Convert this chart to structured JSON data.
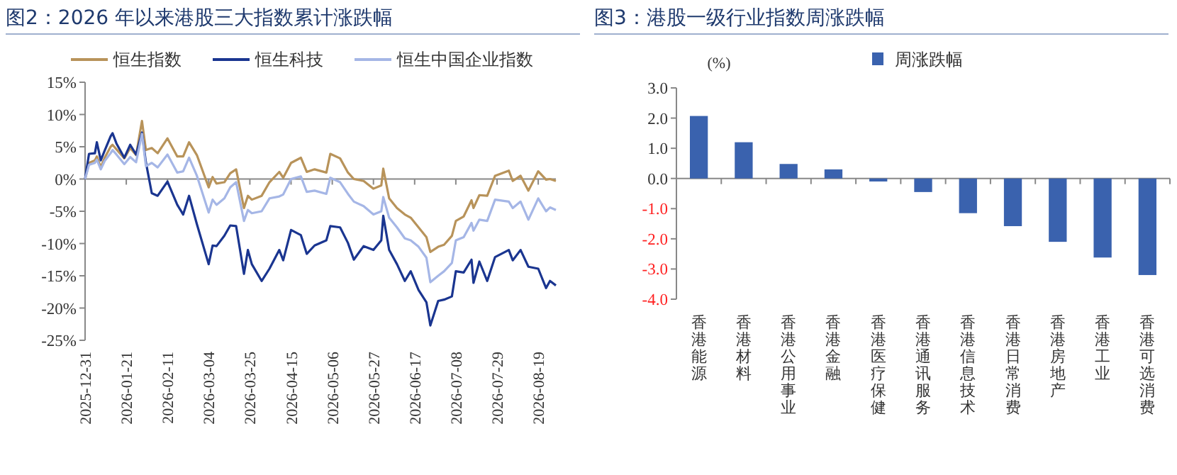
{
  "chart_data": [
    {
      "type": "line",
      "title": "图2：2026 年以来港股三大指数累计涨跌幅",
      "legend": "top",
      "x": [
        "2025-12-31",
        "2026-01-02",
        "2026-01-05",
        "2026-01-06",
        "2026-01-08",
        "2026-01-10",
        "2026-01-13",
        "2026-01-14",
        "2026-01-16",
        "2026-01-20",
        "2026-01-23",
        "2026-01-26",
        "2026-01-29",
        "2026-01-31",
        "2026-02-03",
        "2026-02-06",
        "2026-02-11",
        "2026-02-16",
        "2026-02-19",
        "2026-02-22",
        "2026-02-26",
        "2026-03-04",
        "2026-03-06",
        "2026-03-08",
        "2026-03-12",
        "2026-03-15",
        "2026-03-18",
        "2026-03-22",
        "2026-03-24",
        "2026-03-26",
        "2026-03-31",
        "2026-04-04",
        "2026-04-09",
        "2026-04-11",
        "2026-04-15",
        "2026-04-20",
        "2026-04-23",
        "2026-04-27",
        "2026-05-03",
        "2026-05-05",
        "2026-05-10",
        "2026-05-14",
        "2026-05-17",
        "2026-05-22",
        "2026-05-27",
        "2026-05-31",
        "2026-06-01",
        "2026-06-04",
        "2026-06-08",
        "2026-06-12",
        "2026-06-15",
        "2026-06-19",
        "2026-06-23",
        "2026-06-25",
        "2026-06-29",
        "2026-07-02",
        "2026-07-06",
        "2026-07-08",
        "2026-07-12",
        "2026-07-16",
        "2026-07-17",
        "2026-07-20",
        "2026-07-24",
        "2026-07-28",
        "2026-08-04",
        "2026-08-06",
        "2026-08-10",
        "2026-08-14",
        "2026-08-19",
        "2026-08-23",
        "2026-08-25",
        "2026-08-28"
      ],
      "series": [
        {
          "name": "恒生指数",
          "color": "#b8935a",
          "values": [
            0,
            2.5,
            2.9,
            3.5,
            1.8,
            3.3,
            5.0,
            5.3,
            4.6,
            3.2,
            4.8,
            3.7,
            9.0,
            4.5,
            4.8,
            4.0,
            6.3,
            3.5,
            3.5,
            5.7,
            3.7,
            -1.3,
            0.3,
            -0.7,
            -0.5,
            0.9,
            1.5,
            -4.5,
            -2.6,
            -3.2,
            -2.6,
            -0.5,
            1.1,
            0.2,
            2.5,
            3.3,
            1.1,
            1.5,
            1.0,
            3.9,
            3.2,
            1.0,
            0.0,
            -0.3,
            -1.5,
            -1.0,
            1.6,
            -3.0,
            -4.5,
            -5.5,
            -6.0,
            -7.5,
            -9.0,
            -11.3,
            -10.5,
            -10.2,
            -8.8,
            -6.5,
            -5.8,
            -3.3,
            -4.5,
            -2.5,
            -2.6,
            0.5,
            1.3,
            -0.3,
            0.5,
            -1.8,
            1.2,
            -0.1,
            0.0,
            -0.3
          ]
        },
        {
          "name": "恒生科技",
          "color": "#1a3590",
          "values": [
            0,
            3.9,
            4.0,
            5.7,
            2.9,
            4.4,
            6.6,
            7.1,
            5.5,
            3.3,
            5.3,
            3.8,
            7.2,
            2.6,
            -2.2,
            -2.6,
            -0.4,
            -4.0,
            -5.5,
            -2.6,
            -7.0,
            -13.2,
            -10.3,
            -10.4,
            -8.8,
            -7.2,
            -7.3,
            -14.7,
            -11.0,
            -13.2,
            -15.8,
            -13.9,
            -11.0,
            -12.6,
            -7.9,
            -8.7,
            -11.6,
            -10.3,
            -9.5,
            -7.3,
            -7.5,
            -9.9,
            -12.5,
            -10.4,
            -11.0,
            -9.5,
            -5.7,
            -11.0,
            -13.2,
            -15.8,
            -14.3,
            -17.2,
            -19.1,
            -22.7,
            -18.9,
            -18.7,
            -18.2,
            -14.3,
            -14.5,
            -12.5,
            -16.1,
            -12.8,
            -15.8,
            -12.1,
            -11.0,
            -12.6,
            -11.0,
            -13.6,
            -13.9,
            -16.9,
            -15.8,
            -16.5
          ]
        },
        {
          "name": "恒生中国企业指数",
          "color": "#a5b6e6",
          "values": [
            0,
            2.2,
            2.5,
            3.0,
            1.5,
            2.8,
            4.0,
            4.5,
            3.8,
            2.3,
            3.4,
            2.6,
            7.0,
            2.0,
            2.5,
            1.8,
            3.8,
            1.0,
            1.2,
            3.3,
            0.5,
            -5.2,
            -3.2,
            -4.0,
            -3.0,
            -1.3,
            -0.5,
            -6.5,
            -4.8,
            -5.3,
            -5.0,
            -3.0,
            -2.7,
            -2.4,
            0.0,
            0.4,
            -2.0,
            -1.8,
            -2.3,
            0.2,
            -0.5,
            -2.3,
            -3.5,
            -4.2,
            -5.5,
            -5.0,
            -2.8,
            -6.0,
            -7.5,
            -9.2,
            -9.5,
            -10.5,
            -12.2,
            -16.0,
            -15.0,
            -14.3,
            -13.0,
            -9.5,
            -9.0,
            -6.8,
            -8.0,
            -6.3,
            -6.5,
            -3.2,
            -3.5,
            -4.5,
            -3.5,
            -6.3,
            -3.0,
            -5.0,
            -4.4,
            -4.8
          ]
        }
      ],
      "xlim": [
        "2025-12-31",
        "2026-08-28"
      ],
      "xticks": [
        "2025-12-31",
        "2026-01-21",
        "2026-02-11",
        "2026-03-04",
        "2026-03-25",
        "2026-04-15",
        "2026-05-06",
        "2026-05-27",
        "2026-06-17",
        "2026-07-08",
        "2026-07-29",
        "2026-08-19"
      ],
      "ylim": [
        -25,
        15
      ],
      "yticks": [
        {
          "value": 15,
          "label": "15%"
        },
        {
          "value": 10,
          "label": "10%"
        },
        {
          "value": 5,
          "label": "5%"
        },
        {
          "value": 0,
          "label": "0%"
        },
        {
          "value": -5,
          "label": "-5%"
        },
        {
          "value": -10,
          "label": "-10%"
        },
        {
          "value": -15,
          "label": "-15%"
        },
        {
          "value": -20,
          "label": "-20%"
        },
        {
          "value": -25,
          "label": "-25%"
        }
      ]
    },
    {
      "type": "bar",
      "title": "图3：港股一级行业指数周涨跌幅",
      "ylabel": "(%)",
      "legend": "top",
      "categories": [
        "香港能源",
        "香港材料",
        "香港公用事业",
        "香港金融",
        "香港医疗保健",
        "香港通讯服务",
        "香港信息技术",
        "香港日常消费",
        "香港房地产",
        "香港工业",
        "香港可选消费"
      ],
      "series": [
        {
          "name": "周涨跌幅",
          "color": "#3a62ae",
          "values": [
            2.07,
            1.2,
            0.48,
            0.3,
            -0.1,
            -0.45,
            -1.15,
            -1.58,
            -2.1,
            -2.62,
            -3.2
          ]
        }
      ],
      "ylim": [
        -4,
        3
      ],
      "yticks": [
        {
          "value": 3,
          "label": "3.0"
        },
        {
          "value": 2,
          "label": "2.0"
        },
        {
          "value": 1,
          "label": "1.0"
        },
        {
          "value": 0,
          "label": "0.0"
        },
        {
          "value": -1,
          "label": "-1.0"
        },
        {
          "value": -2,
          "label": "-2.0"
        },
        {
          "value": -3,
          "label": "-3.0"
        },
        {
          "value": -4,
          "label": "-4.0"
        }
      ]
    }
  ]
}
